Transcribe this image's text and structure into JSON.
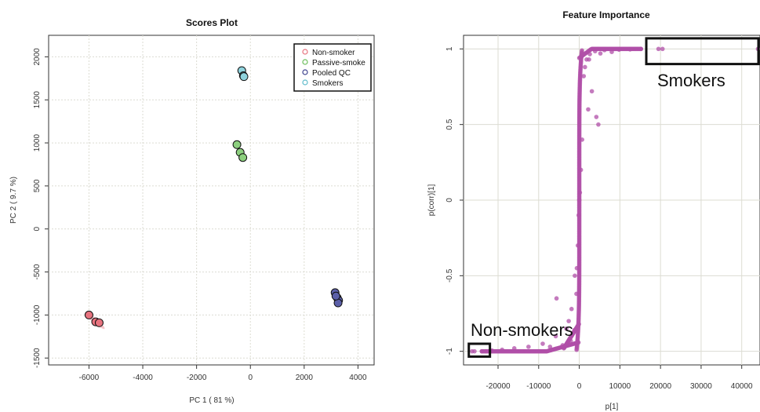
{
  "chart_data": [
    {
      "type": "scatter",
      "title": "Scores Plot",
      "xlabel": "PC 1 ( 81 %)",
      "ylabel": "PC 2 ( 9.7 %)",
      "xlim": [
        -7500,
        4600
      ],
      "ylim": [
        -1580,
        2250
      ],
      "xticks": [
        -6000,
        -4000,
        -2000,
        0,
        2000,
        4000
      ],
      "yticks": [
        -1500,
        -1000,
        -500,
        0,
        500,
        1000,
        1500,
        2000
      ],
      "grid": true,
      "legend_position": "top-right",
      "series": [
        {
          "name": "Non-smoker",
          "color": "#e8737f",
          "x": [
            -6000,
            -5750,
            -5620
          ],
          "y": [
            -1000,
            -1080,
            -1090
          ]
        },
        {
          "name": "Passive-smoke",
          "color": "#8ccf7e",
          "x": [
            -500,
            -380,
            -280
          ],
          "y": [
            980,
            890,
            830
          ]
        },
        {
          "name": "Pooled QC",
          "color": "#5b5fa8",
          "x": [
            3150,
            3230,
            3280,
            3260,
            3180
          ],
          "y": [
            -740,
            -800,
            -830,
            -860,
            -780
          ]
        },
        {
          "name": "Smokers",
          "color": "#8fd3dd",
          "x": [
            -320,
            -260,
            -240
          ],
          "y": [
            1840,
            1780,
            1770
          ]
        }
      ],
      "ellipse": {
        "color": "#f5b5bc",
        "from": [
          -6150,
          -970
        ],
        "to": [
          -5420,
          -1160
        ]
      }
    },
    {
      "type": "scatter",
      "title": "Feature Importance",
      "xlabel": "p[1]",
      "ylabel": "p(corr)[1]",
      "xlim": [
        -28500,
        44500
      ],
      "ylim": [
        -1.09,
        1.09
      ],
      "xticks": [
        -20000,
        -10000,
        0,
        10000,
        20000,
        30000,
        40000
      ],
      "yticks": [
        -1.0,
        -0.5,
        0.0,
        0.5,
        1.0
      ],
      "grid": true,
      "point_color": "#b04fa8",
      "points": [
        [
          19500,
          1.0
        ],
        [
          20500,
          1.0
        ],
        [
          44000,
          1.0
        ],
        [
          15200,
          1.0
        ],
        [
          12500,
          0.997
        ],
        [
          9800,
          0.995
        ],
        [
          6200,
          0.992
        ],
        [
          3900,
          0.985
        ],
        [
          2600,
          0.965
        ],
        [
          1800,
          0.93
        ],
        [
          1400,
          0.88
        ],
        [
          1100,
          0.82
        ],
        [
          3100,
          0.72
        ],
        [
          4200,
          0.55
        ],
        [
          4700,
          0.5
        ],
        [
          2200,
          0.6
        ],
        [
          700,
          0.4
        ],
        [
          400,
          0.2
        ],
        [
          150,
          0.05
        ],
        [
          0,
          0.0
        ],
        [
          -150,
          -0.1
        ],
        [
          -350,
          -0.3
        ],
        [
          -600,
          -0.45
        ],
        [
          -1100,
          -0.5
        ],
        [
          -700,
          -0.62
        ],
        [
          -1900,
          -0.72
        ],
        [
          -5600,
          -0.65
        ],
        [
          -3200,
          -0.85
        ],
        [
          -5800,
          -0.9
        ],
        [
          -9000,
          -0.95
        ],
        [
          -12500,
          -0.97
        ],
        [
          -16000,
          -0.98
        ],
        [
          -19000,
          -0.99
        ],
        [
          -21500,
          -0.995
        ],
        [
          -23000,
          -1.0
        ],
        [
          -25800,
          -1.0
        ],
        [
          -26400,
          -1.0
        ],
        [
          -24000,
          -1.0
        ],
        [
          -2100,
          -0.93
        ],
        [
          -4100,
          -0.96
        ],
        [
          -7200,
          -0.97
        ],
        [
          -1200,
          -0.86
        ],
        [
          -2600,
          -0.8
        ],
        [
          2400,
          0.93
        ],
        [
          5200,
          0.97
        ],
        [
          8000,
          0.98
        ]
      ],
      "annotations": [
        {
          "text": "Smokers",
          "box": {
            "x": [
              16500,
              44500
            ],
            "y": [
              0.9,
              1.07
            ]
          }
        },
        {
          "text": "Non-smokers",
          "box": {
            "x": [
              -27200,
              -22000
            ],
            "y": [
              -1.035,
              -0.95
            ]
          }
        }
      ]
    }
  ]
}
